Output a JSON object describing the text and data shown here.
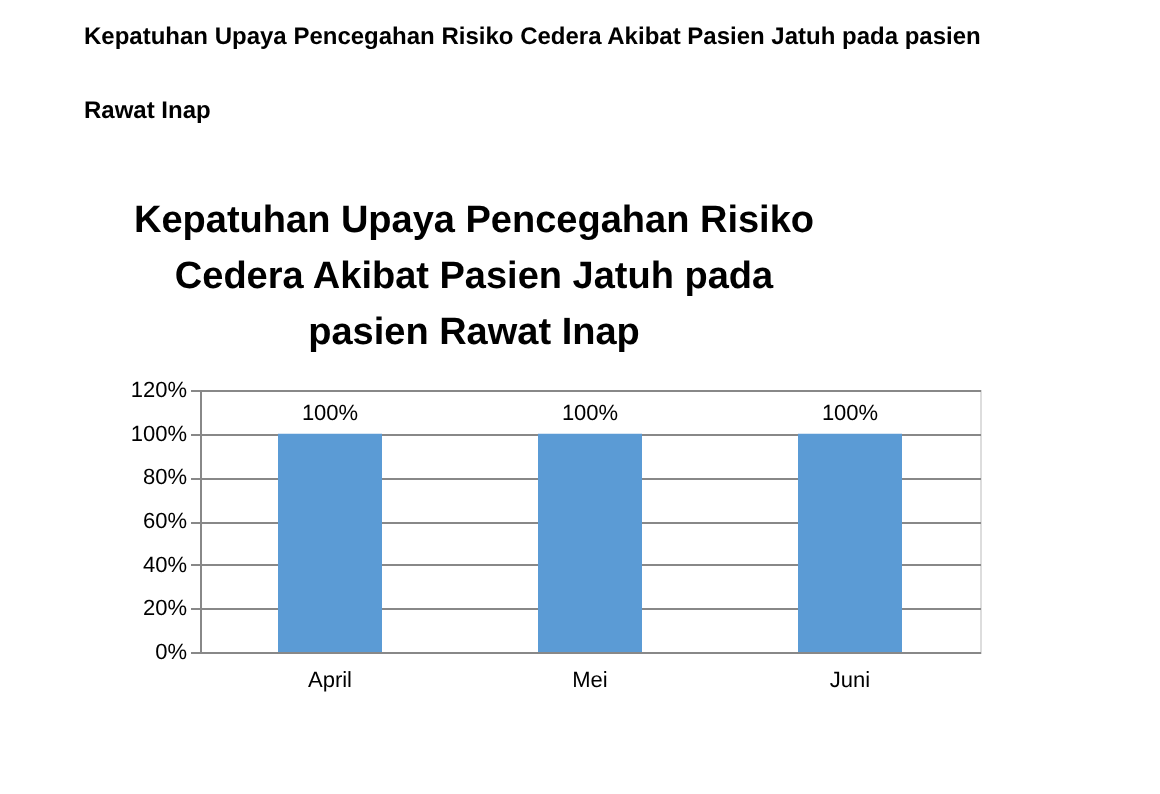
{
  "chart_data": {
    "type": "bar",
    "title": "Kepatuhan Upaya Pencegahan Risiko Cedera Akibat Pasien Jatuh pada pasien Rawat Inap",
    "annotations": [
      "Kepatuhan Upaya Pencegahan Risiko Cedera Akibat Pasien Jatuh pada pasien Rawat Inap"
    ],
    "categories": [
      "April",
      "Mei",
      "Juni"
    ],
    "values": [
      100,
      100,
      100
    ],
    "color": "#5b9bd5",
    "value_labels": [
      "100%",
      "100%",
      "100%"
    ],
    "ylim": [
      0,
      120
    ],
    "yticks": [
      {
        "value": 0,
        "label": "0%"
      },
      {
        "value": 20,
        "label": "20%"
      },
      {
        "value": 40,
        "label": "40%"
      },
      {
        "value": 60,
        "label": "60%"
      },
      {
        "value": 80,
        "label": "80%"
      },
      {
        "value": 100,
        "label": "100%"
      },
      {
        "value": 120,
        "label": "120%"
      }
    ],
    "grid": "y"
  }
}
